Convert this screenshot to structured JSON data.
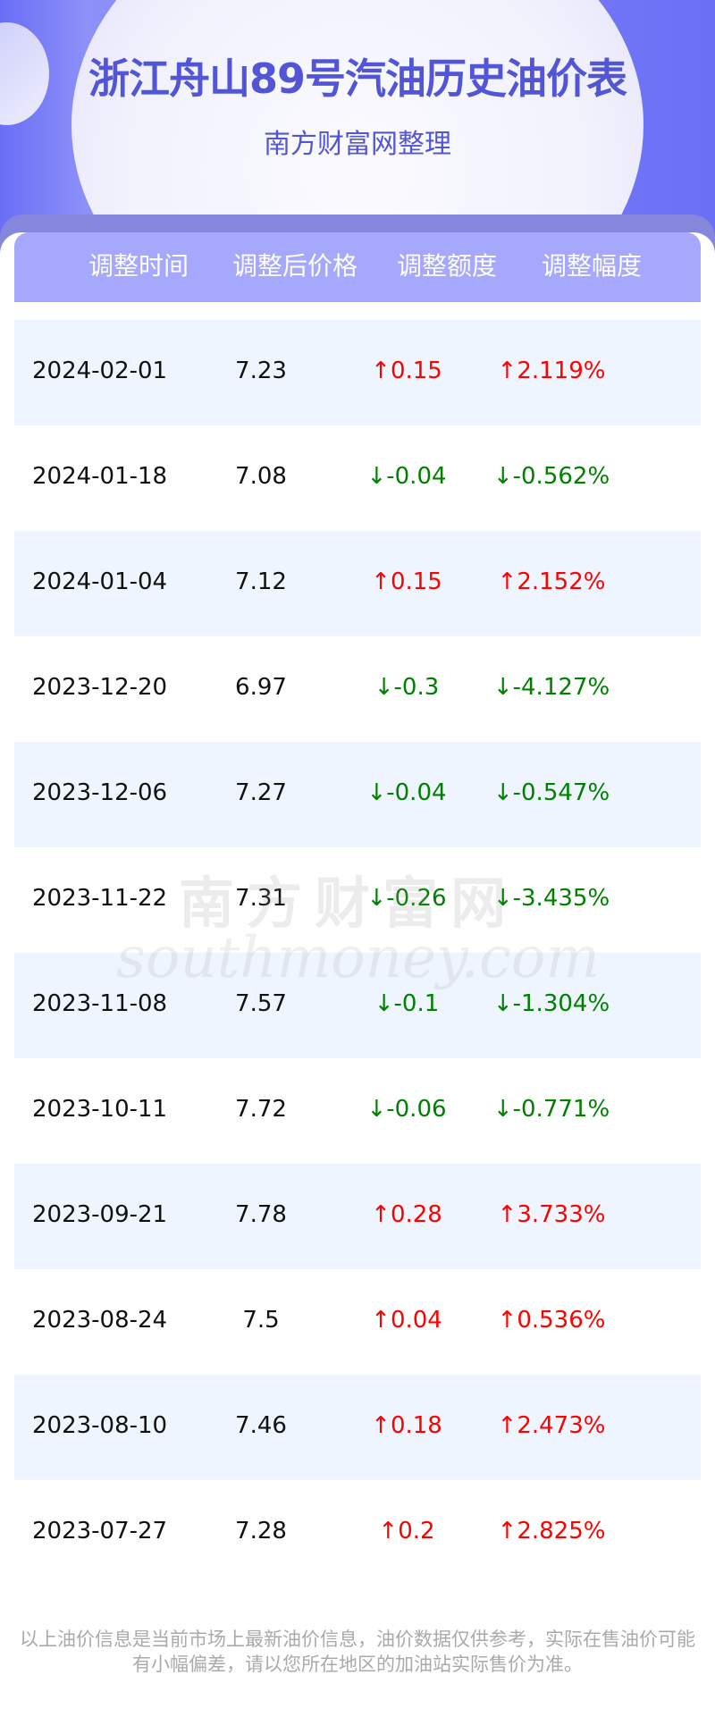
{
  "header": {
    "title": "浙江舟山89号汽油历史油价表",
    "subtitle": "南方财富网整理"
  },
  "table": {
    "columns": [
      "调整时间",
      "调整后价格",
      "调整额度",
      "调整幅度"
    ],
    "rows": [
      {
        "date": "2024-02-01",
        "price": "7.23",
        "change": "↑0.15",
        "percent": "↑2.119%",
        "direction": "up"
      },
      {
        "date": "2024-01-18",
        "price": "7.08",
        "change": "↓-0.04",
        "percent": "↓-0.562%",
        "direction": "down"
      },
      {
        "date": "2024-01-04",
        "price": "7.12",
        "change": "↑0.15",
        "percent": "↑2.152%",
        "direction": "up"
      },
      {
        "date": "2023-12-20",
        "price": "6.97",
        "change": "↓-0.3",
        "percent": "↓-4.127%",
        "direction": "down"
      },
      {
        "date": "2023-12-06",
        "price": "7.27",
        "change": "↓-0.04",
        "percent": "↓-0.547%",
        "direction": "down"
      },
      {
        "date": "2023-11-22",
        "price": "7.31",
        "change": "↓-0.26",
        "percent": "↓-3.435%",
        "direction": "down"
      },
      {
        "date": "2023-11-08",
        "price": "7.57",
        "change": "↓-0.1",
        "percent": "↓-1.304%",
        "direction": "down"
      },
      {
        "date": "2023-10-11",
        "price": "7.72",
        "change": "↓-0.06",
        "percent": "↓-0.771%",
        "direction": "down"
      },
      {
        "date": "2023-09-21",
        "price": "7.78",
        "change": "↑0.28",
        "percent": "↑3.733%",
        "direction": "up"
      },
      {
        "date": "2023-08-24",
        "price": "7.5",
        "change": "↑0.04",
        "percent": "↑0.536%",
        "direction": "up"
      },
      {
        "date": "2023-08-10",
        "price": "7.46",
        "change": "↑0.18",
        "percent": "↑2.473%",
        "direction": "up"
      },
      {
        "date": "2023-07-27",
        "price": "7.28",
        "change": "↑0.2",
        "percent": "↑2.825%",
        "direction": "up"
      }
    ]
  },
  "watermark": {
    "cn": "南方财富网",
    "en": "southmoney.com"
  },
  "footer": {
    "line1": "以上油价信息是当前市场上最新油价信息，油价数据仅供参考，实际在售油价可能",
    "line2": "有小幅偏差，请以您所在地区的加油站实际售价为准。"
  },
  "colors": {
    "accent": "#5256d6",
    "header_bg": "#a5a8fd",
    "up": "#ff0000",
    "down": "#008000",
    "row_alt": "#eff5fe"
  }
}
